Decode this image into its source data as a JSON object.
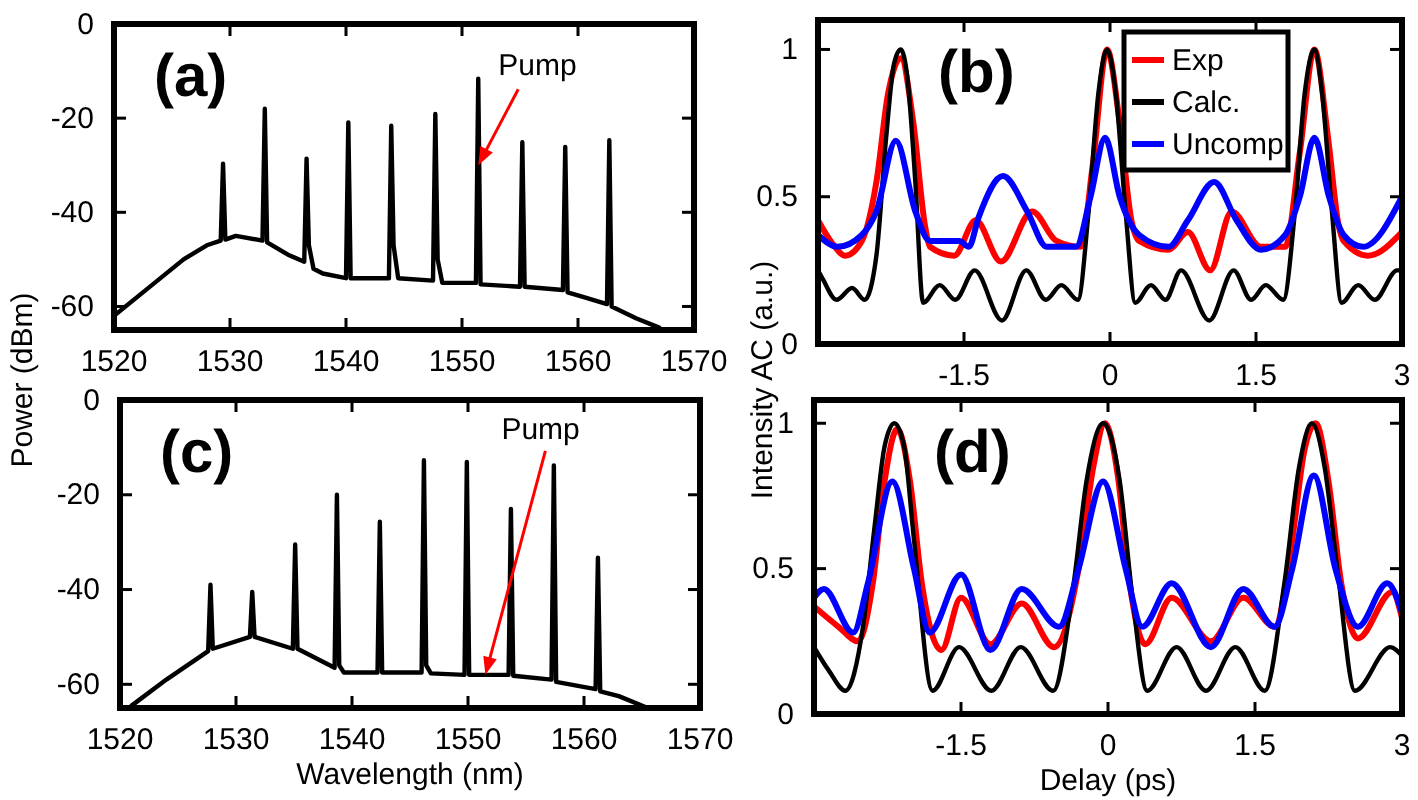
{
  "chart_data": [
    {
      "type": "line",
      "title": "(a)",
      "ylabel": "Power (dBm)",
      "xlim": [
        1520,
        1570
      ],
      "ylim": [
        -65,
        0
      ],
      "xticks": [
        1520,
        1530,
        1540,
        1550,
        1560,
        1570
      ],
      "yticks": [
        -60,
        -40,
        -20,
        0
      ],
      "annotations": [
        {
          "text": "Pump",
          "x": 1551.4,
          "y": -30
        }
      ],
      "series": [
        {
          "color": "#000000",
          "x": [
            1520,
            1523,
            1526,
            1528,
            1529.2,
            1529.4,
            1529.6,
            1530.5,
            1532.8,
            1533.0,
            1533.2,
            1535,
            1536.4,
            1536.6,
            1536.8,
            1537.2,
            1538,
            1540,
            1540.2,
            1540.4,
            1543.7,
            1543.9,
            1544.1,
            1544.5,
            1547.5,
            1547.7,
            1547.9,
            1548.3,
            1551.2,
            1551.4,
            1551.6,
            1555,
            1555.2,
            1555.4,
            1558.7,
            1558.9,
            1559.1,
            1560.5,
            1562.5,
            1562.7,
            1562.9,
            1565,
            1567
          ],
          "values": [
            -62,
            -56,
            -50,
            -47,
            -46,
            -29.7,
            -45.8,
            -45,
            -46,
            -18,
            -46.4,
            -49,
            -50.5,
            -28.6,
            -47,
            -52,
            -53,
            -54,
            -20.9,
            -54,
            -54,
            -21.6,
            -47,
            -54,
            -54.5,
            -19.1,
            -50,
            -55,
            -55,
            -11.6,
            -55.3,
            -55.8,
            -25.1,
            -55.8,
            -56.5,
            -26.1,
            -57,
            -58,
            -59.5,
            -24.7,
            -60,
            -62.5,
            -64.5
          ]
        }
      ]
    },
    {
      "type": "line",
      "title": "(b)",
      "ylabel": "Intensity AC (a.u.)",
      "xlim": [
        -3,
        3
      ],
      "ylim": [
        0,
        1.1
      ],
      "xticks": [
        -1.5,
        0,
        1.5,
        3
      ],
      "yticks": [
        0,
        0.5,
        1
      ],
      "legend": "top right",
      "series": [
        {
          "name": "Exp",
          "color": "#ff0000",
          "x": [
            -3,
            -2.85,
            -2.72,
            -2.55,
            -2.4,
            -2.28,
            -2.15,
            -2.02,
            -1.9,
            -1.85,
            -1.6,
            -1.38,
            -1.12,
            -0.8,
            -0.55,
            -0.3,
            -0.18,
            -0.03,
            0.1,
            0.22,
            0.3,
            0.6,
            0.8,
            1.03,
            1.25,
            1.55,
            1.8,
            1.95,
            2.1,
            2.24,
            2.35,
            2.4,
            2.65,
            3
          ],
          "values": [
            0.42,
            0.34,
            0.3,
            0.35,
            0.55,
            0.85,
            0.97,
            0.75,
            0.4,
            0.33,
            0.3,
            0.42,
            0.28,
            0.45,
            0.35,
            0.33,
            0.6,
            1.0,
            0.75,
            0.42,
            0.35,
            0.32,
            0.38,
            0.25,
            0.45,
            0.33,
            0.33,
            0.65,
            1.0,
            0.7,
            0.4,
            0.35,
            0.3,
            0.38
          ]
        },
        {
          "name": "Calc.",
          "color": "#000000",
          "x": [
            -3,
            -2.95,
            -2.81,
            -2.65,
            -2.52,
            -2.4,
            -2.3,
            -2.22,
            -2.15,
            -2.08,
            -2.0,
            -1.92,
            -1.75,
            -1.59,
            -1.39,
            -1.11,
            -0.86,
            -0.66,
            -0.5,
            -0.33,
            -0.22,
            -0.12,
            -0.03,
            0.06,
            0.16,
            0.26,
            0.42,
            0.57,
            0.73,
            1.02,
            1.27,
            1.45,
            1.6,
            1.78,
            1.9,
            2.0,
            2.1,
            2.18,
            2.28,
            2.38,
            2.55,
            2.72,
            2.95,
            3
          ],
          "values": [
            0.25,
            0.22,
            0.15,
            0.19,
            0.15,
            0.3,
            0.7,
            0.95,
            1.0,
            0.9,
            0.55,
            0.14,
            0.2,
            0.15,
            0.25,
            0.08,
            0.25,
            0.15,
            0.2,
            0.15,
            0.45,
            0.85,
            1.0,
            0.85,
            0.45,
            0.14,
            0.2,
            0.15,
            0.25,
            0.08,
            0.25,
            0.15,
            0.2,
            0.15,
            0.45,
            0.85,
            1.0,
            0.85,
            0.45,
            0.14,
            0.2,
            0.15,
            0.25,
            0.25
          ]
        },
        {
          "name": "Uncomp",
          "color": "#0000ff",
          "x": [
            -3,
            -2.8,
            -2.55,
            -2.4,
            -2.2,
            -2.0,
            -1.85,
            -1.55,
            -1.45,
            -1.35,
            -1.1,
            -0.85,
            -0.65,
            -0.35,
            -0.2,
            -0.05,
            0.1,
            0.3,
            0.6,
            0.8,
            1.07,
            1.3,
            1.55,
            1.8,
            1.95,
            2.1,
            2.25,
            2.4,
            2.6,
            3
          ],
          "values": [
            0.37,
            0.33,
            0.37,
            0.45,
            0.69,
            0.45,
            0.35,
            0.35,
            0.33,
            0.43,
            0.57,
            0.45,
            0.33,
            0.33,
            0.5,
            0.7,
            0.5,
            0.37,
            0.33,
            0.42,
            0.55,
            0.42,
            0.32,
            0.37,
            0.5,
            0.7,
            0.5,
            0.37,
            0.33,
            0.5
          ]
        }
      ]
    },
    {
      "type": "line",
      "title": "(c)",
      "xlabel": "Wavelength (nm)",
      "xlim": [
        1520,
        1570
      ],
      "ylim": [
        -65,
        0
      ],
      "xticks": [
        1520,
        1530,
        1540,
        1550,
        1560,
        1570
      ],
      "yticks": [
        -60,
        -40,
        -20,
        0
      ],
      "annotations": [
        {
          "text": "Pump",
          "x": 1551.5,
          "y": -58
        }
      ],
      "series": [
        {
          "color": "#000000",
          "x": [
            1521,
            1524,
            1527.6,
            1527.8,
            1528,
            1531.2,
            1531.4,
            1531.6,
            1534.9,
            1535.1,
            1535.3,
            1538.5,
            1538.7,
            1538.9,
            1539.3,
            1542.2,
            1542.4,
            1542.6,
            1546,
            1546.2,
            1546.4,
            1546.8,
            1549.7,
            1549.9,
            1550.1,
            1553.5,
            1553.7,
            1553.9,
            1557.2,
            1557.4,
            1557.6,
            1561,
            1561.2,
            1561.4,
            1563,
            1565.5
          ],
          "values": [
            -64.5,
            -59,
            -53,
            -39,
            -52.5,
            -50,
            -40.5,
            -50,
            -52.5,
            -30.5,
            -52.5,
            -56.5,
            -20,
            -56,
            -57.5,
            -57.5,
            -25.7,
            -57.5,
            -57.5,
            -12.7,
            -56,
            -57.7,
            -58,
            -13.1,
            -58,
            -58,
            -23,
            -58.2,
            -59,
            -13.8,
            -59.5,
            -61,
            -33.3,
            -61.5,
            -62.5,
            -65
          ]
        }
      ]
    },
    {
      "type": "line",
      "title": "(d)",
      "xlabel": "Delay (ps)",
      "xlim": [
        -3,
        3
      ],
      "ylim": [
        0,
        1.08
      ],
      "xticks": [
        -1.5,
        0,
        1.5,
        3
      ],
      "yticks": [
        0,
        0.5,
        1
      ],
      "series": [
        {
          "color": "#ff0000",
          "x": [
            -3,
            -2.75,
            -2.55,
            -2.4,
            -2.28,
            -2.15,
            -2.02,
            -1.9,
            -1.7,
            -1.5,
            -1.2,
            -0.88,
            -0.55,
            -0.3,
            -0.15,
            -0.03,
            0.1,
            0.22,
            0.38,
            0.65,
            1.05,
            1.38,
            1.7,
            1.88,
            2.0,
            2.12,
            2.25,
            2.38,
            2.55,
            2.9,
            3
          ],
          "values": [
            0.37,
            0.3,
            0.25,
            0.45,
            0.8,
            0.98,
            0.8,
            0.45,
            0.22,
            0.4,
            0.24,
            0.38,
            0.23,
            0.5,
            0.85,
            1.0,
            0.82,
            0.45,
            0.24,
            0.4,
            0.25,
            0.4,
            0.3,
            0.6,
            0.9,
            1.0,
            0.8,
            0.45,
            0.26,
            0.42,
            0.33
          ]
        },
        {
          "color": "#000000",
          "x": [
            -3,
            -2.85,
            -2.68,
            -2.5,
            -2.38,
            -2.28,
            -2.18,
            -2.08,
            -1.98,
            -1.79,
            -1.52,
            -1.19,
            -0.89,
            -0.56,
            -0.35,
            -0.22,
            -0.05,
            0.12,
            0.25,
            0.4,
            0.7,
            1.0,
            1.3,
            1.6,
            1.8,
            1.95,
            2.08,
            2.21,
            2.34,
            2.52,
            2.88,
            3
          ],
          "values": [
            0.23,
            0.15,
            0.08,
            0.3,
            0.65,
            0.92,
            1.0,
            0.92,
            0.6,
            0.08,
            0.23,
            0.08,
            0.23,
            0.08,
            0.45,
            0.8,
            1.0,
            0.8,
            0.4,
            0.08,
            0.23,
            0.08,
            0.23,
            0.08,
            0.45,
            0.85,
            1.0,
            0.85,
            0.5,
            0.08,
            0.23,
            0.2
          ]
        },
        {
          "color": "#0000ff",
          "x": [
            -3,
            -2.9,
            -2.6,
            -2.45,
            -2.2,
            -1.98,
            -1.82,
            -1.5,
            -1.2,
            -0.88,
            -0.5,
            -0.3,
            -0.05,
            0.18,
            0.35,
            0.65,
            1.05,
            1.38,
            1.7,
            1.88,
            2.1,
            2.32,
            2.55,
            2.85,
            3
          ],
          "values": [
            0.4,
            0.43,
            0.28,
            0.45,
            0.8,
            0.5,
            0.28,
            0.48,
            0.22,
            0.43,
            0.3,
            0.5,
            0.8,
            0.5,
            0.3,
            0.45,
            0.23,
            0.43,
            0.3,
            0.5,
            0.82,
            0.5,
            0.3,
            0.45,
            0.35
          ]
        }
      ]
    }
  ]
}
